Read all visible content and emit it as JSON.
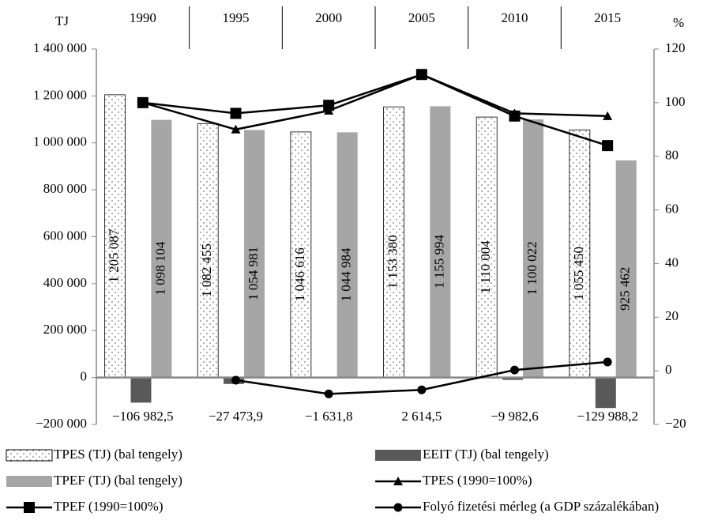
{
  "chart_data": {
    "type": "combo",
    "y_label": "TJ",
    "y2_label": "%",
    "categories": [
      "1990",
      "1995",
      "2000",
      "2005",
      "2010",
      "2015"
    ],
    "ylim": [
      -200000,
      1400000
    ],
    "yticks": [
      {
        "value": -200000,
        "label": "−200 000"
      },
      0,
      {
        "value": 200000,
        "label": "200 000"
      },
      {
        "value": 400000,
        "label": "400 000"
      },
      {
        "value": 600000,
        "label": "600 000"
      },
      {
        "value": 800000,
        "label": "800 000"
      },
      {
        "value": 1000000,
        "label": "1 000 000"
      },
      {
        "value": 1200000,
        "label": "1 200 000"
      },
      {
        "value": 1400000,
        "label": "1 400 000"
      }
    ],
    "y2lim": [
      -20,
      120
    ],
    "y2ticks": [
      {
        "value": -20,
        "label": "−20"
      },
      0,
      20,
      40,
      60,
      80,
      100,
      120
    ],
    "series": [
      {
        "name": "TPES (TJ) (bal tengely)",
        "type": "bar",
        "color": "#ffffff",
        "pattern": "dots",
        "values": [
          1205087,
          1082455,
          1046616,
          1153380,
          1110004,
          1055450
        ],
        "value_labels": [
          "1 205 087",
          "1 082 455",
          "1 046 616",
          "1 153 380",
          "1 110 004",
          "1 055 450"
        ]
      },
      {
        "name": "EEIT (TJ) (bal tengely)",
        "type": "bar",
        "color": "#595959",
        "values": [
          -106982.5,
          -27473.9,
          -1631.8,
          2614.5,
          -9982.6,
          -129988.2
        ],
        "value_labels": [
          "−106 982,5",
          "−27 473,9",
          "−1 631,8",
          "2 614,5",
          "−9 982,6",
          "−129 988,2"
        ]
      },
      {
        "name": "TPEF (TJ) (bal tengely)",
        "type": "bar",
        "color": "#a6a6a6",
        "values": [
          1098104,
          1054981,
          1044984,
          1155994,
          1100022,
          925462
        ],
        "value_labels": [
          "1 098 104",
          "1 054 981",
          "1 044 984",
          "1 155 994",
          "1 100 022",
          "925 462"
        ]
      },
      {
        "name": "TPES (1990=100%)",
        "type": "line",
        "axis": "y2",
        "marker": "triangle",
        "color": "#000000",
        "values": [
          100,
          90,
          97,
          110.5,
          96,
          95
        ]
      },
      {
        "name": "TPEF (1990=100%)",
        "type": "line",
        "axis": "y2",
        "marker": "square",
        "color": "#000000",
        "values": [
          100,
          96,
          99,
          110.5,
          95,
          84
        ]
      },
      {
        "name": "Folyó fizetési mérleg (a GDP százalékában)",
        "type": "line",
        "axis": "y2",
        "marker": "circle",
        "color": "#000000",
        "values": [
          null,
          -3.5,
          -8.6,
          -7.1,
          0.3,
          3.3
        ]
      }
    ]
  }
}
